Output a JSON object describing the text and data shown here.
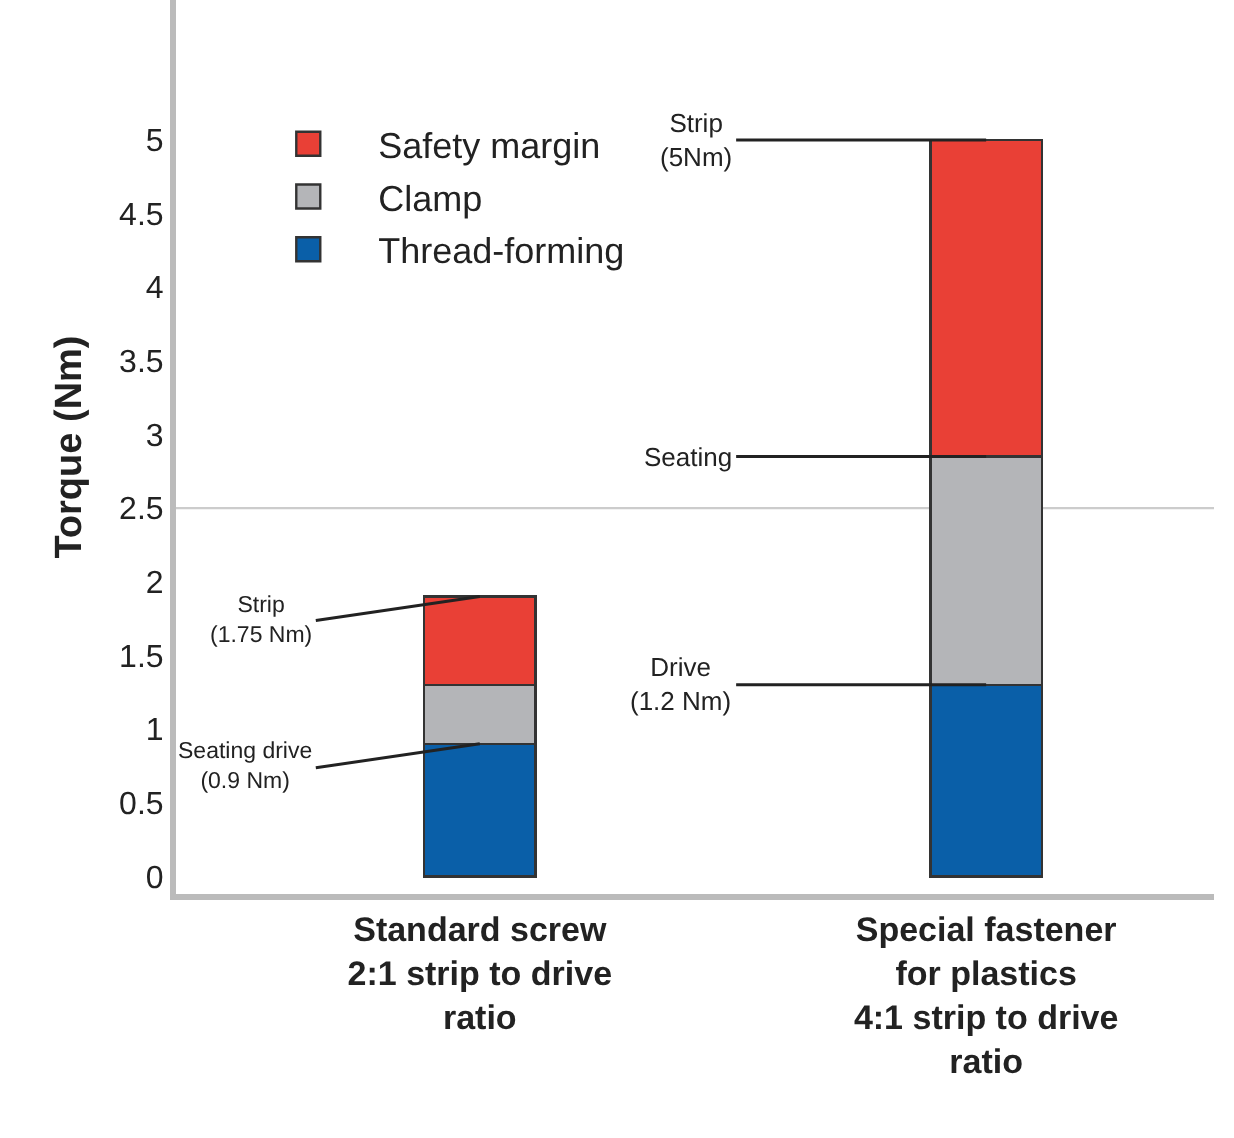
{
  "chart_data": {
    "type": "bar",
    "stacked": true,
    "ylabel": "Torque (Nm)",
    "categories": [
      "Standard screw\n2:1 strip to drive\nratio",
      "Special fastener\nfor plastics\n4:1 strip to drive\nratio"
    ],
    "series": [
      {
        "name": "Thread-forming",
        "color": "#0a5fa8",
        "values": [
          0.9,
          1.3
        ]
      },
      {
        "name": "Clamp",
        "color": "#b4b5b8",
        "values": [
          0.4,
          1.55
        ]
      },
      {
        "name": "Safety margin",
        "color": "#e94036",
        "values": [
          0.6,
          2.15
        ]
      }
    ],
    "ylim": [
      -0.12,
      5.95
    ],
    "yticks": [
      0,
      0.5,
      1,
      1.5,
      2,
      2.5,
      3,
      3.5,
      4,
      4.5,
      5
    ],
    "ref_lines": [
      {
        "axis": "y",
        "value": 2.5,
        "color": "#cccccc"
      }
    ],
    "legend": "top left",
    "grid": false,
    "annotations": [
      {
        "text": "Strip\n(1.75 Nm)",
        "x": "Standard screw\n2:1 strip to drive\nratio",
        "y": 1.9
      },
      {
        "text": "Seating drive\n(0.9 Nm)",
        "x": "Standard screw\n2:1 strip to drive\nratio",
        "y": 0.9
      },
      {
        "text": "Strip\n(5Nm)",
        "x": "Special fastener\nfor plastics\n4:1 strip to drive\nratio",
        "y": 5
      },
      {
        "text": "Seating",
        "x": "Special fastener\nfor plastics\n4:1 strip to drive\nratio",
        "y": 2.85
      },
      {
        "text": "Drive\n(1.2 Nm)",
        "x": "Special fastener\nfor plastics\n4:1 strip to drive\nratio",
        "y": 1.3
      }
    ]
  }
}
